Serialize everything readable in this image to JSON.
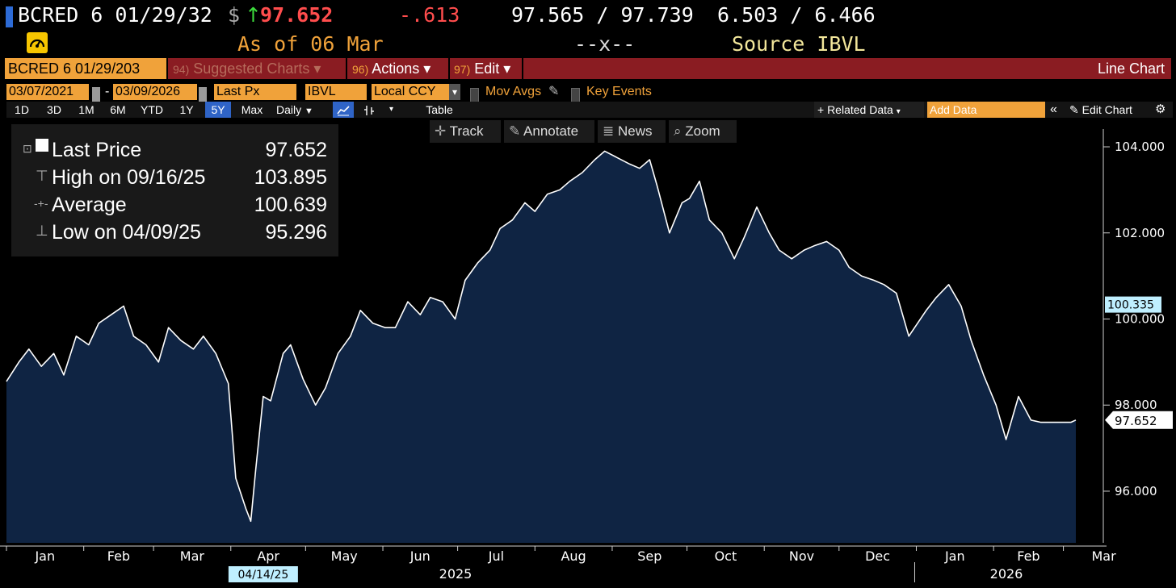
{
  "header": {
    "ticker": "BCRED 6 01/29/32",
    "currency_symbol": "$",
    "arrow": "↑",
    "last_price": "97.652",
    "change": "-.613",
    "bid_ask": "97.565 / 97.739",
    "yields": "6.503 / 6.466",
    "as_of": "As of 06 Mar",
    "middle_marker": "--x--",
    "source": "Source IBVL",
    "colors": {
      "price": "#ff4d4d",
      "arrow": "#3ddc3d",
      "change": "#ff4d4d",
      "as_of": "#f0a23a",
      "source": "#f3e79b",
      "marker": "#2d6bd6"
    }
  },
  "toolbar": {
    "ticker": "BCRED 6 01/29/203",
    "suggested_num": "94)",
    "suggested_label": "Suggested Charts",
    "actions_num": "96)",
    "actions_label": "Actions",
    "edit_num": "97)",
    "edit_label": "Edit",
    "caret": "▾",
    "chart_type": "Line Chart"
  },
  "fields": {
    "start_date": "03/07/2021",
    "dash": "-",
    "end_date": "03/09/2026",
    "field": "Last Px",
    "source": "IBVL",
    "currency": "Local CCY",
    "currency_caret": "▾",
    "mov_avgs": "Mov Avgs",
    "key_events": "Key Events"
  },
  "tabs": {
    "ranges": [
      "1D",
      "3D",
      "1M",
      "6M",
      "YTD",
      "1Y",
      "5Y",
      "Max"
    ],
    "active_range": "5Y",
    "frequency": "Daily",
    "frequency_caret": "▼",
    "table": "Table",
    "related_data": "+ Related Data",
    "related_caret": "▾",
    "add_data_placeholder": "Add Data",
    "collapse": "«",
    "edit_chart": "Edit Chart",
    "gear": "⚙"
  },
  "tools": {
    "track": "Track",
    "annotate": "Annotate",
    "news": "News",
    "zoom": "Zoom"
  },
  "legend": {
    "rows": [
      {
        "label": "Last Price",
        "value": "97.652",
        "glyph": "⊡"
      },
      {
        "label": "High on 09/16/25",
        "value": "103.895",
        "glyph": "⊤"
      },
      {
        "label": "Average",
        "value": "100.639",
        "glyph": "-+-"
      },
      {
        "label": "Low on 04/09/25",
        "value": "95.296",
        "glyph": "⊥"
      }
    ]
  },
  "chart_data": {
    "type": "area",
    "series": [
      {
        "values_start_date": "2025-01-01",
        "x": [
          "2025-01-01",
          "2025-01-06",
          "2025-01-10",
          "2025-01-15",
          "2025-01-20",
          "2025-01-24",
          "2025-01-29",
          "2025-02-03",
          "2025-02-07",
          "2025-02-12",
          "2025-02-17",
          "2025-02-21",
          "2025-02-26",
          "2025-03-03",
          "2025-03-07",
          "2025-03-12",
          "2025-03-17",
          "2025-03-21",
          "2025-03-26",
          "2025-03-31",
          "2025-04-03",
          "2025-04-07",
          "2025-04-09",
          "2025-04-11",
          "2025-04-14",
          "2025-04-17",
          "2025-04-22",
          "2025-04-25",
          "2025-04-30",
          "2025-05-05",
          "2025-05-09",
          "2025-05-14",
          "2025-05-19",
          "2025-05-23",
          "2025-05-28",
          "2025-06-02",
          "2025-06-06",
          "2025-06-11",
          "2025-06-16",
          "2025-06-20",
          "2025-06-25",
          "2025-06-30",
          "2025-07-04",
          "2025-07-09",
          "2025-07-14",
          "2025-07-18",
          "2025-07-23",
          "2025-07-28",
          "2025-08-01",
          "2025-08-06",
          "2025-08-11",
          "2025-08-15",
          "2025-08-20",
          "2025-08-25",
          "2025-08-29",
          "2025-09-03",
          "2025-09-08",
          "2025-09-12",
          "2025-09-16",
          "2025-09-19",
          "2025-09-24",
          "2025-09-29",
          "2025-10-02",
          "2025-10-06",
          "2025-10-10",
          "2025-10-15",
          "2025-10-20",
          "2025-10-24",
          "2025-10-29",
          "2025-11-03",
          "2025-11-07",
          "2025-11-12",
          "2025-11-17",
          "2025-11-21",
          "2025-11-26",
          "2025-12-01",
          "2025-12-05",
          "2025-12-10",
          "2025-12-15",
          "2025-12-19",
          "2025-12-24",
          "2025-12-29",
          "2026-01-05",
          "2026-01-09",
          "2026-01-14",
          "2026-01-19",
          "2026-01-23",
          "2026-01-28",
          "2026-02-02",
          "2026-02-06",
          "2026-02-11",
          "2026-02-16",
          "2026-02-20",
          "2026-02-25",
          "2026-03-02",
          "2026-03-04",
          "2026-03-06"
        ],
        "values": [
          98.55,
          99.0,
          99.3,
          98.9,
          99.2,
          98.7,
          99.6,
          99.4,
          99.9,
          100.1,
          100.3,
          99.6,
          99.4,
          99.0,
          99.8,
          99.5,
          99.3,
          99.6,
          99.2,
          98.5,
          96.3,
          95.6,
          95.3,
          96.5,
          98.2,
          98.1,
          99.2,
          99.4,
          98.6,
          98.0,
          98.4,
          99.2,
          99.6,
          100.2,
          99.9,
          99.8,
          99.8,
          100.4,
          100.1,
          100.5,
          100.4,
          100.0,
          100.9,
          101.3,
          101.6,
          102.1,
          102.3,
          102.7,
          102.5,
          102.9,
          103.0,
          103.2,
          103.4,
          103.7,
          103.9,
          103.75,
          103.6,
          103.5,
          103.7,
          103.1,
          102.0,
          102.7,
          102.8,
          103.2,
          102.3,
          102.0,
          101.4,
          101.9,
          102.6,
          102.0,
          101.6,
          101.4,
          101.6,
          101.7,
          101.8,
          101.6,
          101.2,
          101.0,
          100.9,
          100.8,
          100.6,
          99.6,
          100.2,
          100.5,
          100.8,
          100.3,
          99.5,
          98.7,
          98.0,
          97.2,
          98.2,
          97.652,
          97.6,
          97.6,
          97.6,
          97.6,
          97.652
        ],
        "color": "#ffffff",
        "fill": "#0f2443"
      }
    ],
    "y_ticks": [
      "104.000",
      "102.000",
      "100.000",
      "98.000",
      "96.000"
    ],
    "ylim": [
      94.8,
      104.6
    ],
    "x_month_labels": [
      "Jan",
      "Feb",
      "Mar",
      "Apr",
      "May",
      "Jun",
      "Jul",
      "Aug",
      "Sep",
      "Oct",
      "Nov",
      "Dec",
      "Jan",
      "Feb",
      "Mar"
    ],
    "x_year_labels": [
      "2025",
      "2026"
    ],
    "current_value_tag": "97.652",
    "crosshair_value_tag": "100.335",
    "crosshair_date_tag": "04/14/25",
    "grid": false,
    "legend_position": "top-left"
  }
}
